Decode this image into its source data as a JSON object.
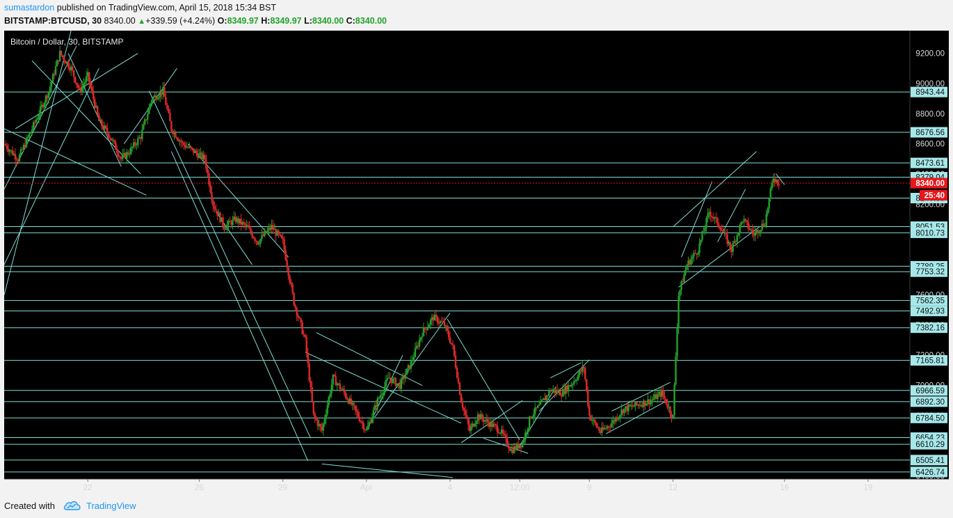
{
  "header": {
    "author": "sumastardon",
    "published_text": " published on TradingView.com, April 15, 2018 15:34 BST",
    "symbol": "BITSTAMP:BTCUSD, 30",
    "last": "8340.00",
    "change": "+339.59 (+4.24%)",
    "open_label": "O:",
    "open": "8349.97",
    "high_label": "H:",
    "high": "8349.97",
    "low_label": "L:",
    "low": "8340.00",
    "close_label": "C:",
    "close": "8340.00"
  },
  "footer": {
    "created_with": "Created with",
    "brand": "TradingView",
    "logo_icon": "tradingview-cloud-icon"
  },
  "colors": {
    "background": "#000000",
    "line": "#80dfd6",
    "up": "#22a22a",
    "down": "#e02a2a",
    "price_tag": "#e8171a",
    "label_bg": "#a6e8ea",
    "axis_text": "#d8d8d8"
  },
  "chart_data": {
    "type": "candlestick",
    "title": "Bitcoin / Dollar, 30, BITSTAMP",
    "ylim": [
      6380,
      9350
    ],
    "y_ticks": [
      "9200.00",
      "9000.00",
      "8800.00",
      "8600.00",
      "8400.00",
      "8200.00",
      "8000.00",
      "7800.00",
      "7600.00",
      "7400.00",
      "7200.00",
      "7000.00",
      "6800.00",
      "6600.00",
      "6400.00"
    ],
    "x_ticks": [
      {
        "label": "22",
        "x": 3.0
      },
      {
        "label": "26",
        "x": 7.0
      },
      {
        "label": "29",
        "x": 10.0
      },
      {
        "label": "Apr",
        "x": 13.0
      },
      {
        "label": "4",
        "x": 16.0
      },
      {
        "label": "12:00",
        "x": 18.5
      },
      {
        "label": "9",
        "x": 21.0
      },
      {
        "label": "12",
        "x": 24.0
      },
      {
        "label": "16",
        "x": 28.0
      },
      {
        "label": "19",
        "x": 31.0
      }
    ],
    "x_range": [
      0.0,
      32.5
    ],
    "current_price": {
      "value": 8340.0,
      "label": "8340.00",
      "countdown": "25:40"
    },
    "horizontal_levels": [
      {
        "value": 8943.44,
        "label": "8943.44"
      },
      {
        "value": 8676.56,
        "label": "8676.56"
      },
      {
        "value": 8473.61,
        "label": "8473.61"
      },
      {
        "value": 8379.04,
        "label": "8379.04"
      },
      {
        "value": 8240.85,
        "label": "8240.85"
      },
      {
        "value": 8051.53,
        "label": "8051.53"
      },
      {
        "value": 8010.73,
        "label": "8010.73"
      },
      {
        "value": 7789.25,
        "label": "7789.25"
      },
      {
        "value": 7753.32,
        "label": "7753.32"
      },
      {
        "value": 7562.35,
        "label": "7562.35"
      },
      {
        "value": 7492.93,
        "label": "7492.93"
      },
      {
        "value": 7382.16,
        "label": "7382.16"
      },
      {
        "value": 7165.81,
        "label": "7165.81"
      },
      {
        "value": 6966.59,
        "label": "6966.59"
      },
      {
        "value": 6892.3,
        "label": "6892.30"
      },
      {
        "value": 6784.5,
        "label": "6784.50"
      },
      {
        "value": 6654.23,
        "label": "6654.23"
      },
      {
        "value": 6610.29,
        "label": "6610.29"
      },
      {
        "value": 6505.41,
        "label": "6505.41"
      },
      {
        "value": 6426.74,
        "label": "6426.74"
      }
    ],
    "price_path": [
      [
        0.0,
        8600
      ],
      [
        0.5,
        8500
      ],
      [
        1.0,
        8700
      ],
      [
        1.6,
        8950
      ],
      [
        2.0,
        9200
      ],
      [
        2.4,
        9100
      ],
      [
        2.7,
        8950
      ],
      [
        3.0,
        9050
      ],
      [
        3.4,
        8750
      ],
      [
        3.8,
        8650
      ],
      [
        4.2,
        8500
      ],
      [
        4.5,
        8550
      ],
      [
        4.9,
        8650
      ],
      [
        5.3,
        8900
      ],
      [
        5.7,
        8950
      ],
      [
        6.0,
        8700
      ],
      [
        6.4,
        8600
      ],
      [
        6.8,
        8550
      ],
      [
        7.2,
        8500
      ],
      [
        7.5,
        8200
      ],
      [
        7.9,
        8050
      ],
      [
        8.3,
        8100
      ],
      [
        8.7,
        8050
      ],
      [
        9.1,
        7950
      ],
      [
        9.6,
        8050
      ],
      [
        10.0,
        7950
      ],
      [
        10.4,
        7550
      ],
      [
        10.8,
        7300
      ],
      [
        11.1,
        6800
      ],
      [
        11.4,
        6700
      ],
      [
        11.8,
        7050
      ],
      [
        12.2,
        6950
      ],
      [
        12.7,
        6800
      ],
      [
        13.0,
        6700
      ],
      [
        13.4,
        6900
      ],
      [
        13.8,
        7050
      ],
      [
        14.2,
        7000
      ],
      [
        14.6,
        7150
      ],
      [
        15.0,
        7350
      ],
      [
        15.4,
        7450
      ],
      [
        15.8,
        7400
      ],
      [
        16.1,
        7250
      ],
      [
        16.4,
        6900
      ],
      [
        16.7,
        6700
      ],
      [
        17.0,
        6800
      ],
      [
        17.4,
        6750
      ],
      [
        17.8,
        6700
      ],
      [
        18.2,
        6570
      ],
      [
        18.6,
        6620
      ],
      [
        18.9,
        6800
      ],
      [
        19.2,
        6860
      ],
      [
        19.6,
        6970
      ],
      [
        20.0,
        6950
      ],
      [
        20.4,
        7020
      ],
      [
        20.8,
        7120
      ],
      [
        21.0,
        6800
      ],
      [
        21.4,
        6690
      ],
      [
        21.8,
        6750
      ],
      [
        22.2,
        6840
      ],
      [
        22.7,
        6870
      ],
      [
        23.2,
        6900
      ],
      [
        23.6,
        6950
      ],
      [
        24.0,
        6790
      ],
      [
        24.2,
        7600
      ],
      [
        24.5,
        7800
      ],
      [
        24.9,
        7900
      ],
      [
        25.3,
        8150
      ],
      [
        25.7,
        8050
      ],
      [
        26.1,
        7900
      ],
      [
        26.5,
        8100
      ],
      [
        26.9,
        8000
      ],
      [
        27.3,
        8080
      ],
      [
        27.6,
        8380
      ],
      [
        27.8,
        8340
      ]
    ]
  }
}
